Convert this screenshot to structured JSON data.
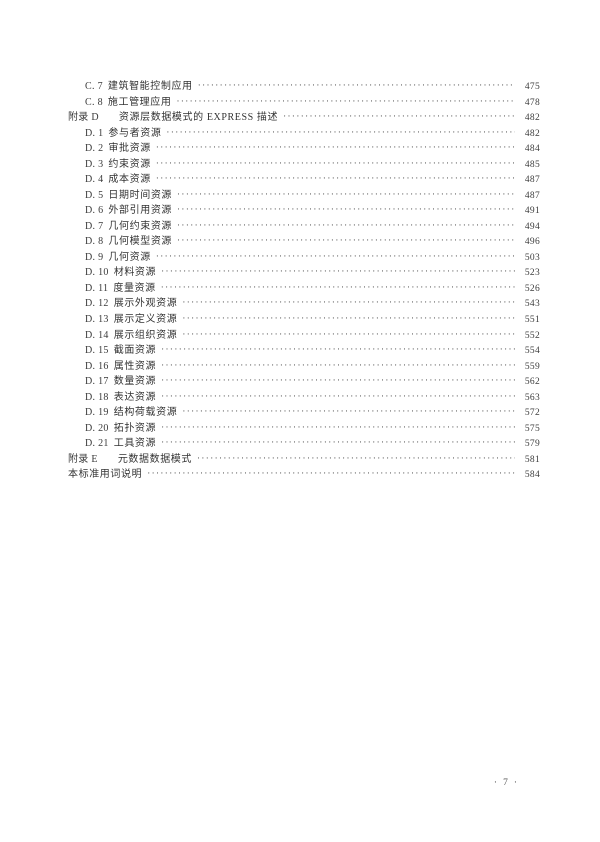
{
  "toc": {
    "entries": [
      {
        "label": "C. 7",
        "title": "建筑智能控制应用",
        "page": "475",
        "level": 1
      },
      {
        "label": "C. 8",
        "title": "施工管理应用",
        "page": "478",
        "level": 1
      },
      {
        "label": "附录 D",
        "title": "资源层数据模式的 EXPRESS 描述",
        "page": "482",
        "level": 0
      },
      {
        "label": "D. 1",
        "title": "参与者资源",
        "page": "482",
        "level": 1
      },
      {
        "label": "D. 2",
        "title": "审批资源",
        "page": "484",
        "level": 1
      },
      {
        "label": "D. 3",
        "title": "约束资源",
        "page": "485",
        "level": 1
      },
      {
        "label": "D. 4",
        "title": "成本资源",
        "page": "487",
        "level": 1
      },
      {
        "label": "D. 5",
        "title": "日期时间资源",
        "page": "487",
        "level": 1
      },
      {
        "label": "D. 6",
        "title": "外部引用资源",
        "page": "491",
        "level": 1
      },
      {
        "label": "D. 7",
        "title": "几何约束资源",
        "page": "494",
        "level": 1
      },
      {
        "label": "D. 8",
        "title": "几何模型资源",
        "page": "496",
        "level": 1
      },
      {
        "label": "D. 9",
        "title": "几何资源",
        "page": "503",
        "level": 1
      },
      {
        "label": "D. 10",
        "title": "材料资源",
        "page": "523",
        "level": 1
      },
      {
        "label": "D. 11",
        "title": "度量资源",
        "page": "526",
        "level": 1
      },
      {
        "label": "D. 12",
        "title": "展示外观资源",
        "page": "543",
        "level": 1
      },
      {
        "label": "D. 13",
        "title": "展示定义资源",
        "page": "551",
        "level": 1
      },
      {
        "label": "D. 14",
        "title": "展示组织资源",
        "page": "552",
        "level": 1
      },
      {
        "label": "D. 15",
        "title": "截面资源",
        "page": "554",
        "level": 1
      },
      {
        "label": "D. 16",
        "title": "属性资源",
        "page": "559",
        "level": 1
      },
      {
        "label": "D. 17",
        "title": "数量资源",
        "page": "562",
        "level": 1
      },
      {
        "label": "D. 18",
        "title": "表达资源",
        "page": "563",
        "level": 1
      },
      {
        "label": "D. 19",
        "title": "结构荷载资源",
        "page": "572",
        "level": 1
      },
      {
        "label": "D. 20",
        "title": "拓扑资源",
        "page": "575",
        "level": 1
      },
      {
        "label": "D. 21",
        "title": "工具资源",
        "page": "579",
        "level": 1
      },
      {
        "label": "附录 E",
        "title": "元数据数据模式",
        "page": "581",
        "level": 0
      },
      {
        "label": "",
        "title": "本标准用词说明",
        "page": "584",
        "level": 0
      }
    ]
  },
  "footer": {
    "page_number": "7",
    "decoration": "·"
  }
}
